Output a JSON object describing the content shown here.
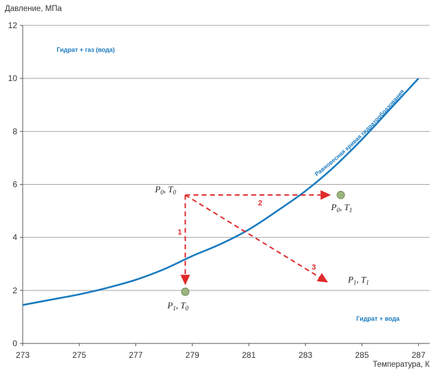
{
  "chart_data": {
    "type": "line",
    "ylabel": "Давление, МПа",
    "xlabel": "Температура, К",
    "xlim": [
      273,
      287.2
    ],
    "ylim": [
      0,
      12
    ],
    "x_ticks": [
      273,
      275,
      277,
      279,
      281,
      283,
      285,
      287
    ],
    "y_ticks": [
      0,
      2,
      4,
      6,
      8,
      10,
      12
    ],
    "grid": {
      "horizontal": true,
      "vertical": false
    },
    "series": [
      {
        "name": "Равновесная кривая гидратообразования",
        "color": "#1a7bc0",
        "x": [
          273.0,
          274.0,
          275.0,
          276.0,
          277.0,
          278.0,
          279.0,
          280.0,
          281.0,
          282.0,
          283.0,
          284.0,
          285.0,
          286.0,
          287.0
        ],
        "y": [
          1.45,
          1.65,
          1.85,
          2.1,
          2.4,
          2.8,
          3.3,
          3.75,
          4.3,
          5.0,
          5.75,
          6.65,
          7.7,
          8.85,
          10.0
        ]
      }
    ],
    "regions": [
      {
        "label": "Гидрат + газ (вода)",
        "x": 274.2,
        "y": 11.0
      },
      {
        "label": "Гидрат + вода",
        "x": 284.8,
        "y": 0.85
      }
    ],
    "points": [
      {
        "symbol": "P",
        "psub": "0",
        "sep": ", ",
        "tsymbol": "T",
        "tsub": "0",
        "x": 278.75,
        "y": 5.6,
        "marker": false
      },
      {
        "symbol": "P",
        "psub": "0",
        "sep": ", ",
        "tsymbol": "T",
        "tsub": "1",
        "x": 284.25,
        "y": 5.6,
        "marker": true
      },
      {
        "symbol": "P",
        "psub": "1",
        "sep": ", ",
        "tsymbol": "T",
        "tsub": "0",
        "x": 278.75,
        "y": 1.95,
        "marker": true
      },
      {
        "symbol": "P",
        "psub": "1",
        "sep": ", ",
        "tsymbol": "T",
        "tsub": "1",
        "x": 284.6,
        "y": 2.4,
        "marker": false
      }
    ],
    "arrows": [
      {
        "number": "1",
        "from": [
          278.75,
          5.6
        ],
        "to": [
          278.75,
          2.2
        ]
      },
      {
        "number": "2",
        "from": [
          278.75,
          5.6
        ],
        "to": [
          283.9,
          5.6
        ]
      },
      {
        "number": "3",
        "from": [
          278.75,
          5.6
        ],
        "to": [
          283.8,
          2.3
        ]
      }
    ],
    "colors": {
      "curve": "#1a7bc0",
      "arrows": "#e02a2a",
      "markers": "#9bb67f",
      "grid": "#a5a5a5"
    }
  }
}
